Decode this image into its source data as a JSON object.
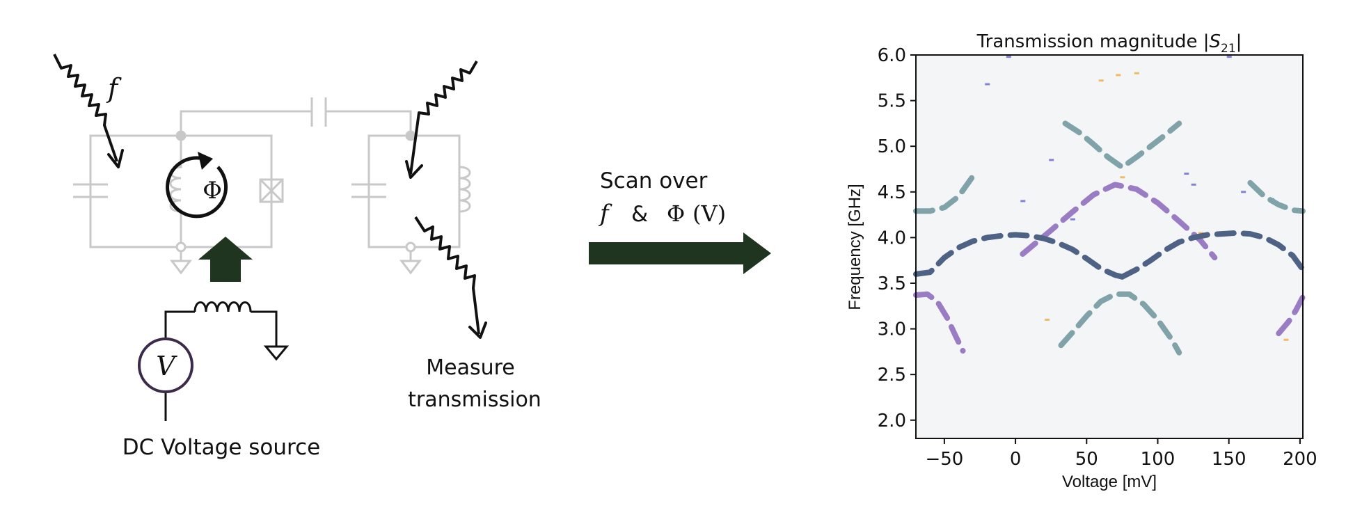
{
  "labels": {
    "f": "f",
    "phi": "Φ",
    "v": "V",
    "source": "DC Voltage source",
    "measure_line1": "Measure",
    "measure_line2": "transmission",
    "scan_line1": "Scan over",
    "scan_f": "f",
    "scan_amp": "&",
    "scan_phi": "Φ",
    "scan_paren": "(V)"
  },
  "colors": {
    "circuit": "#c8c8c8",
    "wave": "#111111",
    "flux_arrow": "#1f3520",
    "scan_arrow": "#1f3520",
    "voltmeter_ring": "#3b2a4a",
    "teal": "#7fa3a8",
    "purple": "#9a7cc4",
    "navy": "#4e6285",
    "background_noise": "#f4f5f7"
  },
  "chart_data": {
    "type": "heatmap",
    "title": "Transmission magnitude |S21|",
    "title_text": "Transmission magnitude |",
    "title_s": "S",
    "title_sub": "21",
    "title_end": "|",
    "xlabel": "Voltage [mV]",
    "ylabel": "Frequency [GHz]",
    "xlim": [
      -70,
      202
    ],
    "ylim": [
      1.8,
      6.0
    ],
    "xticks": [
      -50,
      0,
      50,
      100,
      150,
      200
    ],
    "xtick_labels": [
      "−50",
      "0",
      "50",
      "100",
      "150",
      "200"
    ],
    "yticks": [
      2.0,
      2.5,
      3.0,
      3.5,
      4.0,
      4.5,
      5.0,
      5.5,
      6.0
    ],
    "ytick_labels": [
      "2.0",
      "2.5",
      "3.0",
      "3.5",
      "4.0",
      "4.5",
      "5.0",
      "5.5",
      "6.0"
    ],
    "grid": false,
    "series": [
      {
        "color": "teal",
        "x": [
          -70,
          -60,
          -50,
          -40,
          -30
        ],
        "y": [
          4.29,
          4.29,
          4.33,
          4.45,
          4.67
        ]
      },
      {
        "color": "teal",
        "x": [
          35,
          45,
          55,
          65,
          75,
          85,
          95,
          105,
          115
        ],
        "y": [
          5.25,
          5.15,
          5.02,
          4.88,
          4.77,
          4.88,
          5.0,
          5.12,
          5.25
        ]
      },
      {
        "color": "teal",
        "x": [
          165,
          175,
          185,
          195,
          202
        ],
        "y": [
          4.6,
          4.45,
          4.36,
          4.3,
          4.29
        ]
      },
      {
        "color": "teal",
        "x": [
          32,
          40,
          50,
          60,
          70,
          80,
          90,
          100,
          110,
          115
        ],
        "y": [
          2.82,
          2.96,
          3.14,
          3.3,
          3.38,
          3.38,
          3.27,
          3.1,
          2.88,
          2.74
        ]
      },
      {
        "color": "purple",
        "x": [
          5,
          15,
          25,
          40,
          55,
          70,
          85,
          100,
          115,
          130,
          140
        ],
        "y": [
          3.82,
          3.95,
          4.08,
          4.28,
          4.47,
          4.58,
          4.53,
          4.38,
          4.18,
          3.97,
          3.78
        ]
      },
      {
        "color": "purple",
        "x": [
          -70,
          -62,
          -55,
          -48,
          -42,
          -37
        ],
        "y": [
          3.37,
          3.38,
          3.3,
          3.12,
          2.92,
          2.76
        ]
      },
      {
        "color": "purple",
        "x": [
          185,
          192,
          197,
          202
        ],
        "y": [
          2.95,
          3.08,
          3.2,
          3.35
        ]
      },
      {
        "color": "navy",
        "x": [
          -70,
          -60,
          -50,
          -40,
          -30,
          -20,
          -10,
          0,
          10,
          20,
          30,
          40,
          50,
          60,
          70,
          75
        ],
        "y": [
          3.6,
          3.62,
          3.78,
          3.89,
          3.96,
          4.0,
          4.02,
          4.03,
          4.02,
          3.99,
          3.94,
          3.87,
          3.77,
          3.66,
          3.59,
          3.57
        ]
      },
      {
        "color": "navy",
        "x": [
          75,
          85,
          95,
          105,
          115,
          125,
          135,
          145,
          155,
          165,
          175,
          185,
          195,
          202
        ],
        "y": [
          3.57,
          3.65,
          3.75,
          3.86,
          3.95,
          4.0,
          4.03,
          4.04,
          4.05,
          4.04,
          4.0,
          3.92,
          3.8,
          3.65
        ]
      }
    ],
    "noise": [
      {
        "color": "#f0b04a",
        "x": 72,
        "y": 5.78
      },
      {
        "color": "#f0b04a",
        "x": 60,
        "y": 5.72
      },
      {
        "color": "#f0b04a",
        "x": 85,
        "y": 5.8
      },
      {
        "color": "#6f6fd0",
        "x": -20,
        "y": 5.68
      },
      {
        "color": "#6f6fd0",
        "x": 120,
        "y": 4.7
      },
      {
        "color": "#6f6fd0",
        "x": 125,
        "y": 4.58
      },
      {
        "color": "#6f6fd0",
        "x": 160,
        "y": 4.5
      },
      {
        "color": "#6f6fd0",
        "x": 25,
        "y": 4.85
      },
      {
        "color": "#f0b04a",
        "x": 75,
        "y": 4.66
      },
      {
        "color": "#f0b04a",
        "x": 22,
        "y": 3.1
      },
      {
        "color": "#6f6fd0",
        "x": 5,
        "y": 4.4
      },
      {
        "color": "#f0b04a",
        "x": 190,
        "y": 2.88
      },
      {
        "color": "#f0b04a",
        "x": 130,
        "y": 4.05
      },
      {
        "color": "#6f6fd0",
        "x": 180,
        "y": 4.42
      },
      {
        "color": "#6f6fd0",
        "x": 40,
        "y": 4.2
      },
      {
        "color": "#6f6fd0",
        "x": 150,
        "y": 5.98
      },
      {
        "color": "#f0b04a",
        "x": 80,
        "y": 3.62
      },
      {
        "color": "#6f6fd0",
        "x": -5,
        "y": 5.98
      }
    ]
  }
}
